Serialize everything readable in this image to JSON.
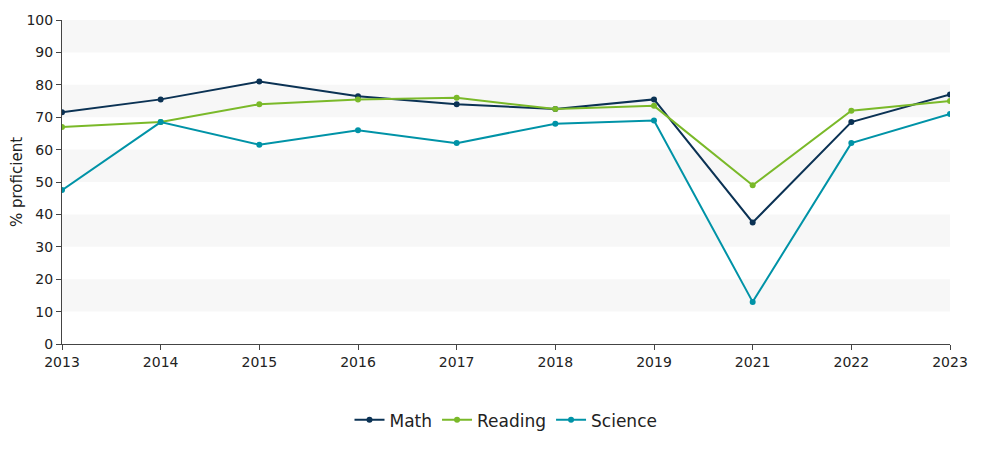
{
  "chart_data": {
    "type": "line",
    "categories": [
      "2013",
      "2014",
      "2015",
      "2016",
      "2017",
      "2018",
      "2019",
      "2021",
      "2022",
      "2023"
    ],
    "series": [
      {
        "name": "Math",
        "color": "#0b3254",
        "values": [
          71.5,
          75.5,
          81,
          76.5,
          74,
          72.5,
          75.5,
          37.5,
          68.5,
          77
        ]
      },
      {
        "name": "Reading",
        "color": "#7ab929",
        "values": [
          67,
          68.5,
          74,
          75.5,
          76,
          72.5,
          73.5,
          49,
          72,
          75
        ]
      },
      {
        "name": "Science",
        "color": "#0093a7",
        "values": [
          47.5,
          68.5,
          61.5,
          66,
          62,
          68,
          69,
          13,
          62,
          71
        ]
      }
    ],
    "y_label": "% proficient",
    "ylim": [
      0,
      100
    ],
    "yticks": [
      0,
      10,
      20,
      30,
      40,
      50,
      60,
      70,
      80,
      90,
      100
    ],
    "grid": true,
    "legend": "bottom",
    "marker": "circle"
  }
}
